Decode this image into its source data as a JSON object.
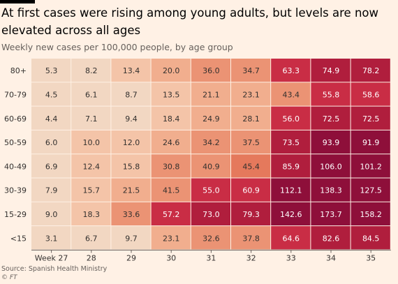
{
  "title": "At first cases were rising among young adults, but levels are now elevated across all ages",
  "subtitle": "Weekly new cases per 100,000 people, by age group",
  "source": "Source: Spanish Health Ministry",
  "brand": "© FT",
  "chart_data": {
    "type": "heatmap",
    "title": "At first cases were rising among young adults, but levels are now elevated across all ages",
    "subtitle": "Weekly new cases per 100,000 people, by age group",
    "x_tick_labels": [
      "Week 27",
      "28",
      "29",
      "30",
      "31",
      "32",
      "33",
      "34",
      "35"
    ],
    "rows": [
      "80+",
      "70-79",
      "60-69",
      "50-59",
      "40-49",
      "30-39",
      "15-29",
      "<15"
    ],
    "values": [
      [
        5.3,
        8.2,
        13.4,
        20.0,
        36.0,
        34.7,
        63.3,
        74.9,
        78.2
      ],
      [
        4.5,
        6.1,
        8.7,
        13.5,
        21.1,
        23.1,
        43.4,
        55.8,
        58.6
      ],
      [
        4.4,
        7.1,
        9.4,
        18.4,
        24.9,
        28.1,
        56.0,
        72.5,
        72.5
      ],
      [
        6.0,
        10.0,
        12.0,
        24.6,
        34.2,
        37.5,
        73.5,
        93.9,
        91.9
      ],
      [
        6.9,
        12.4,
        15.8,
        30.8,
        40.9,
        45.4,
        85.9,
        106.0,
        101.2
      ],
      [
        7.9,
        15.7,
        21.5,
        41.5,
        55.0,
        60.9,
        112.1,
        138.3,
        127.5
      ],
      [
        9.0,
        18.3,
        33.6,
        57.2,
        73.0,
        79.3,
        142.6,
        173.7,
        158.2
      ],
      [
        3.1,
        6.7,
        9.7,
        23.1,
        32.6,
        37.8,
        64.6,
        82.6,
        84.5
      ]
    ],
    "color_bins": [
      {
        "min": 0,
        "max": 10,
        "color": "#f2d7c2"
      },
      {
        "min": 10,
        "max": 20,
        "color": "#f4c4a8"
      },
      {
        "min": 20,
        "max": 30,
        "color": "#f1ae8e"
      },
      {
        "min": 30,
        "max": 45,
        "color": "#eb9374"
      },
      {
        "min": 45,
        "max": 55,
        "color": "#e5795c"
      },
      {
        "min": 55,
        "max": 70,
        "color": "#c92d45"
      },
      {
        "min": 70,
        "max": 90,
        "color": "#b01e3d"
      },
      {
        "min": 90,
        "max": 1000,
        "color": "#8e0f3a"
      }
    ],
    "light_text_from": 55,
    "text_color_dark": "#33302e",
    "text_color_light": "#ffffff"
  }
}
